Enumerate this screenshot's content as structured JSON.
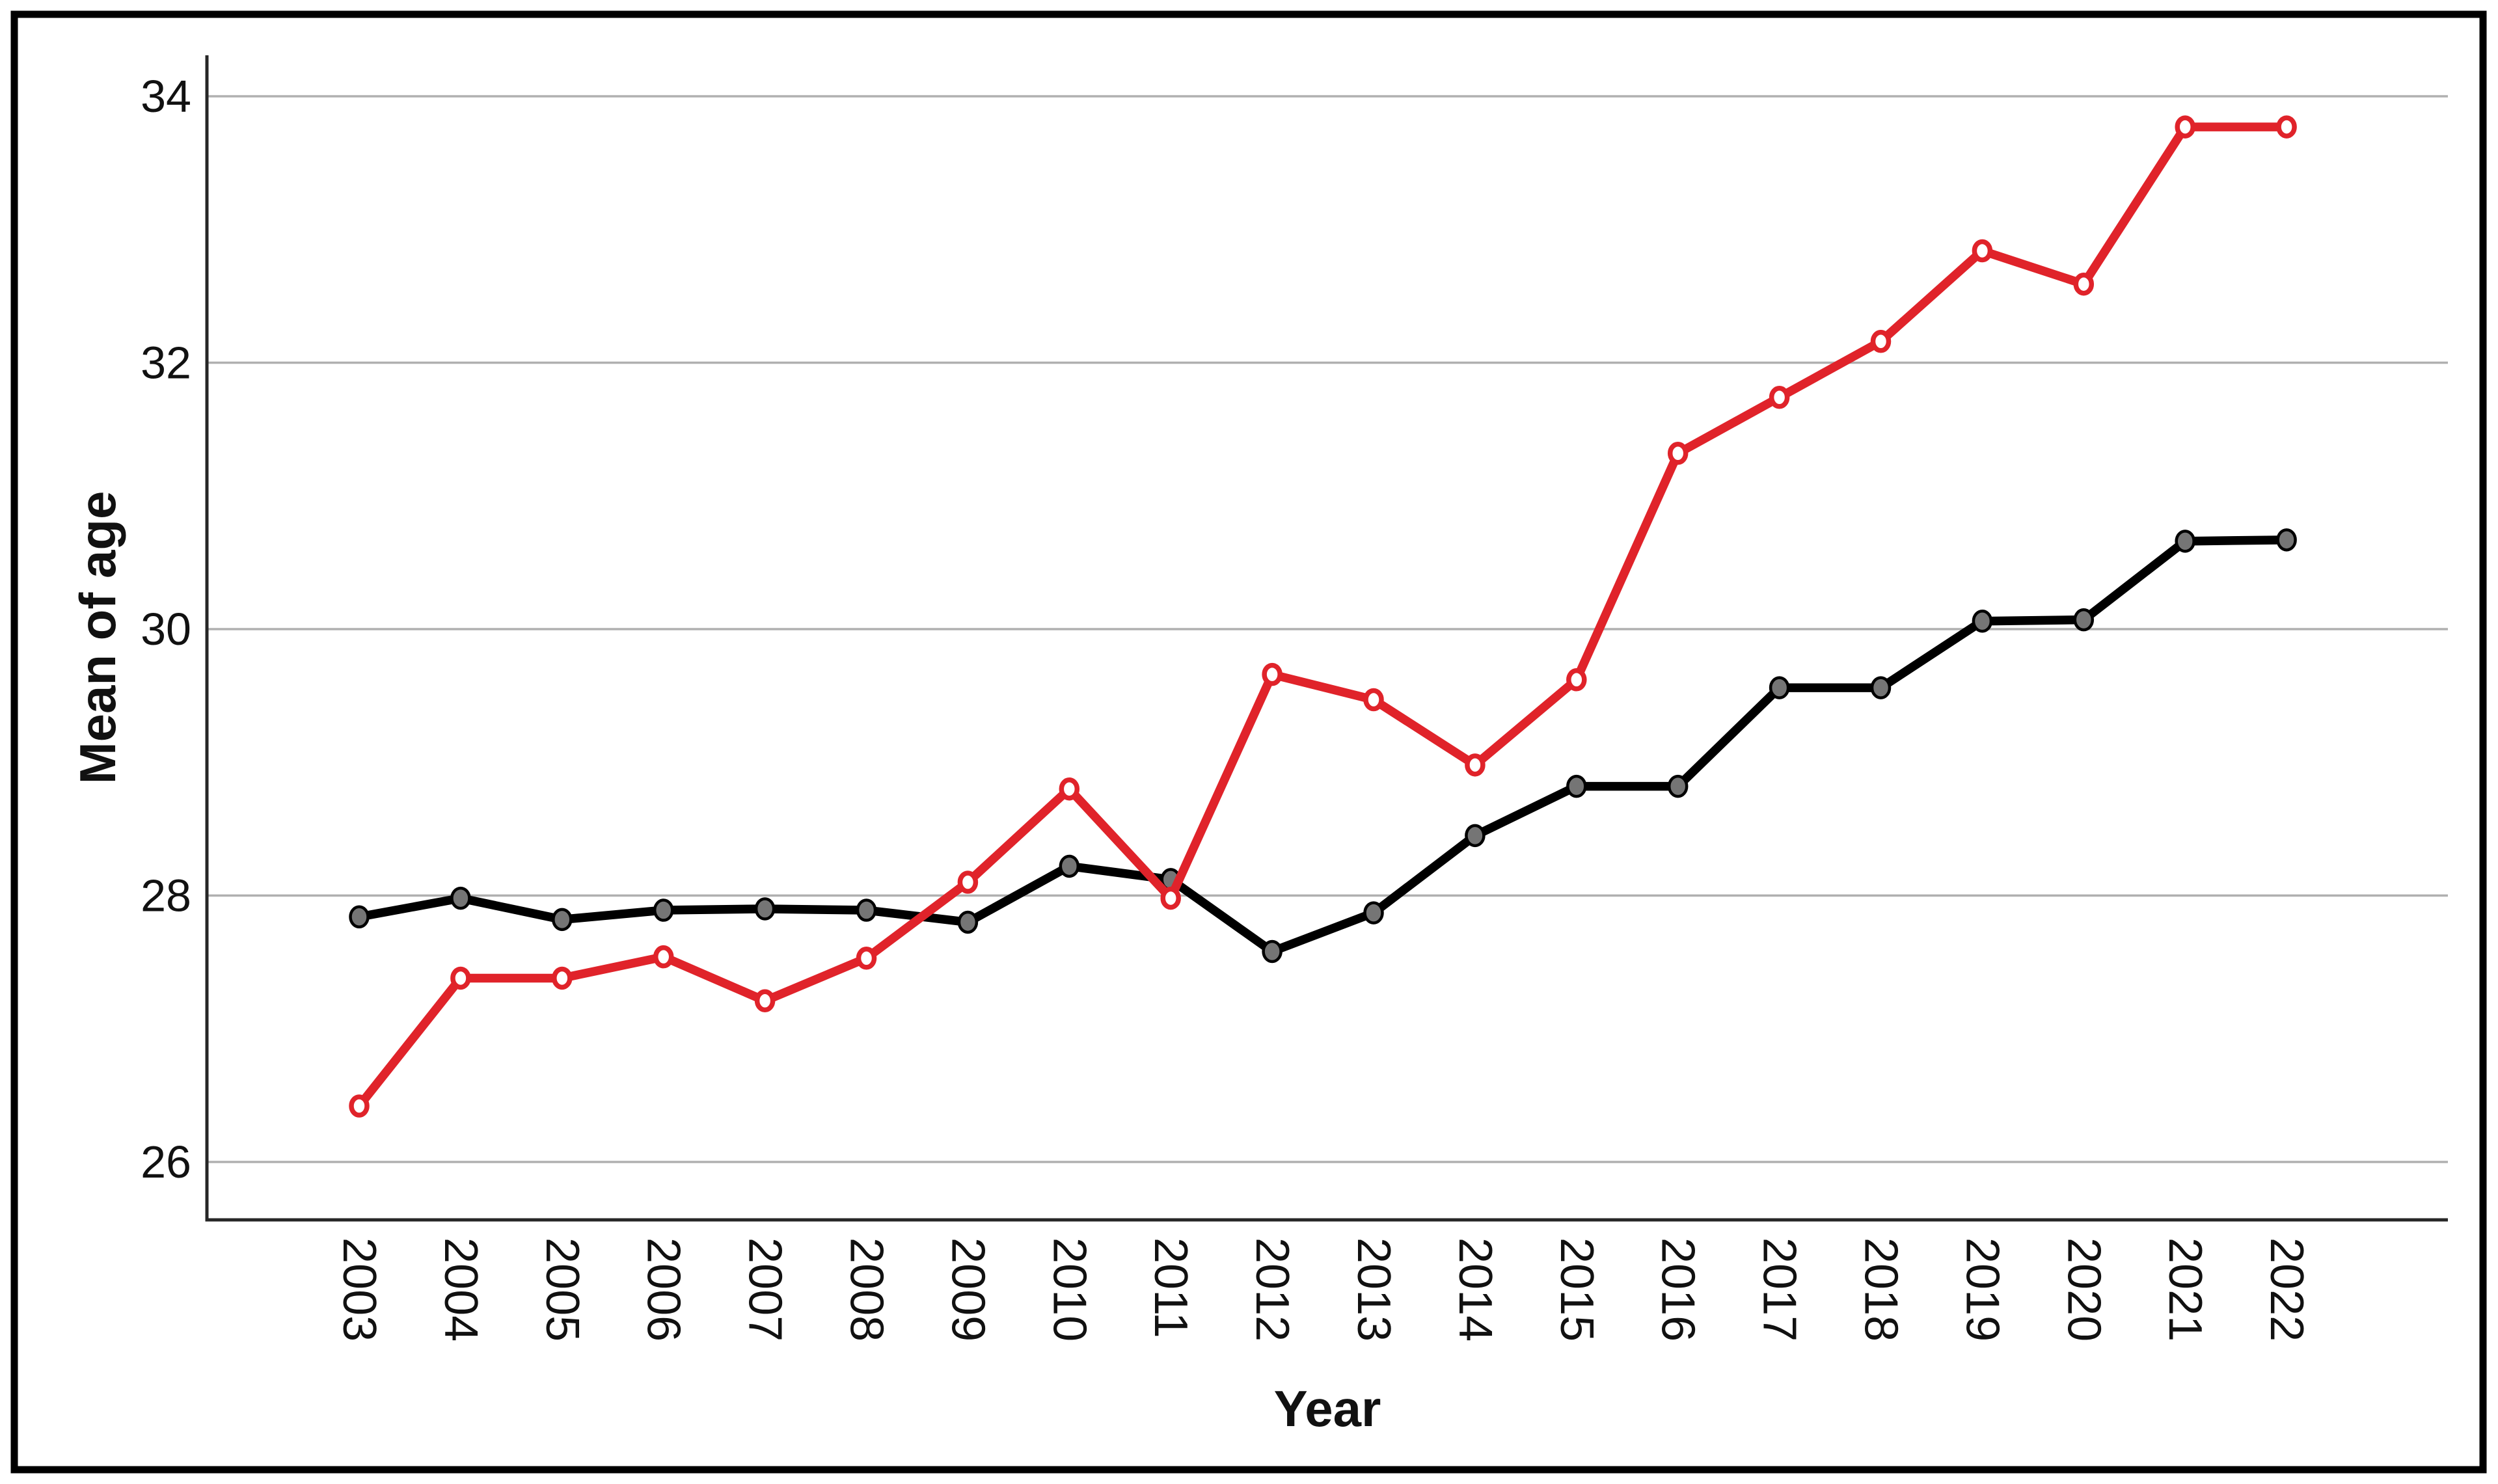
{
  "figure": {
    "background": "#ffffff",
    "border_color": "#000000",
    "axis_line_color": "#262626",
    "gridline_color": "#b0b0b0",
    "text_color": "#111111"
  },
  "chart_data": {
    "type": "line",
    "title": "",
    "xlabel": "Year",
    "ylabel": "Mean of age",
    "categories": [
      "2003",
      "2004",
      "2005",
      "2006",
      "2007",
      "2008",
      "2009",
      "2010",
      "2011",
      "2012",
      "2013",
      "2014",
      "2015",
      "2016",
      "2017",
      "2018",
      "2019",
      "2020",
      "2021",
      "2022"
    ],
    "y_ticks": [
      26,
      28,
      30,
      32,
      34
    ],
    "ylim": [
      25.57,
      34.3
    ],
    "grid": "horizontal-only",
    "legend": "none",
    "x_tick_label_rotation_deg": 90,
    "series": [
      {
        "name": "black-series",
        "line_color": "#000000",
        "marker_fill": "#757575",
        "marker_stroke": "#000000",
        "values": [
          27.84,
          27.98,
          27.82,
          27.89,
          27.9,
          27.89,
          27.8,
          28.22,
          28.12,
          27.58,
          27.87,
          28.45,
          28.82,
          28.82,
          29.56,
          29.56,
          30.06,
          30.07,
          30.66,
          30.67
        ]
      },
      {
        "name": "red-series",
        "line_color": "#e0232a",
        "marker_fill": "#ffffff",
        "marker_stroke": "#e0232a",
        "values": [
          26.42,
          27.38,
          27.38,
          27.54,
          27.21,
          27.53,
          28.1,
          28.8,
          27.98,
          29.66,
          29.47,
          28.98,
          29.62,
          31.32,
          31.74,
          32.16,
          32.84,
          32.59,
          33.77,
          33.77
        ]
      }
    ]
  }
}
